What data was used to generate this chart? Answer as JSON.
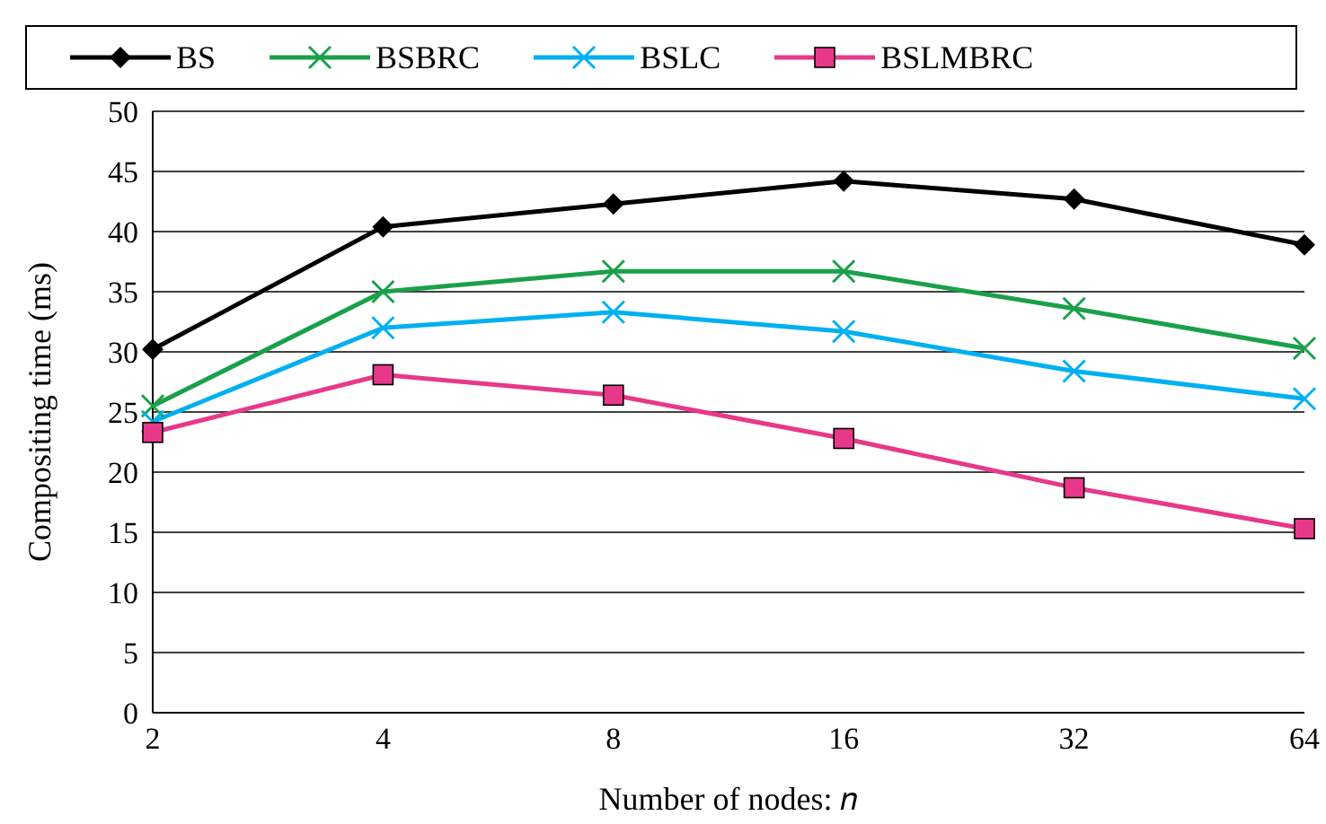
{
  "chart_data": {
    "type": "line",
    "xlabel": "Number of nodes: 𝑛",
    "ylabel": "Compositing time (ms)",
    "categories": [
      "2",
      "4",
      "8",
      "16",
      "32",
      "64"
    ],
    "ylim": [
      0,
      50
    ],
    "yticks": [
      0,
      5,
      10,
      15,
      20,
      25,
      30,
      35,
      40,
      45,
      50
    ],
    "grid": "y",
    "legend": "top",
    "line_style": "solid",
    "series": [
      {
        "name": "BS",
        "color": "#000000",
        "marker": "diamond",
        "values": [
          30.2,
          40.4,
          42.3,
          44.2,
          42.7,
          38.9
        ]
      },
      {
        "name": "BSBRC",
        "color": "#1aa04a",
        "marker": "cross",
        "values": [
          25.5,
          35,
          36.7,
          36.7,
          33.6,
          30.3
        ]
      },
      {
        "name": "BSLC",
        "color": "#00b0f0",
        "marker": "cross",
        "values": [
          24.2,
          32,
          33.3,
          31.7,
          28.4,
          26.1
        ]
      },
      {
        "name": "BSLMBRC",
        "color": "#e8388a",
        "marker": "square",
        "values": [
          23.3,
          28.1,
          26.4,
          22.8,
          18.7,
          15.3
        ]
      }
    ]
  }
}
